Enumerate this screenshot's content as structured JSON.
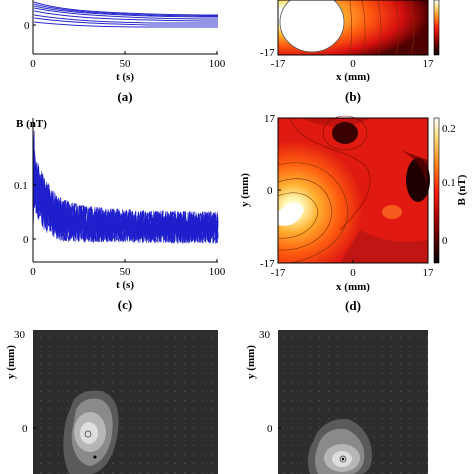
{
  "panel_a": {
    "label": "(a)",
    "xlabel": "t (s)",
    "x_ticks": [
      "0",
      "50",
      "100"
    ],
    "y_ticks": [
      "0"
    ]
  },
  "panel_b": {
    "label": "(b)",
    "xlabel": "x (mm)",
    "x_ticks": [
      "-17",
      "0",
      "17"
    ],
    "y_ticks": [
      "-17"
    ]
  },
  "panel_c": {
    "label": "(c)",
    "xlabel": "t (s)",
    "ylabel": "B (nT)",
    "x_ticks": [
      "0",
      "50",
      "100"
    ],
    "y_ticks": [
      "0.1",
      "0"
    ]
  },
  "panel_d": {
    "label": "(d)",
    "xlabel": "x (mm)",
    "ylabel": "y (mm)",
    "colorbar_label": "B (nT)",
    "x_ticks": [
      "-17",
      "0",
      "17"
    ],
    "y_ticks": [
      "17",
      "0",
      "-17"
    ],
    "colorbar_ticks": [
      "0.2",
      "0.1",
      "0"
    ]
  },
  "panel_e": {
    "ylabel": "y (mm)",
    "y_ticks": [
      "30",
      "0"
    ]
  },
  "panel_f": {
    "ylabel": "y (mm)",
    "y_ticks": [
      "30",
      "0"
    ]
  },
  "colors": {
    "trace": "#1f1fcc",
    "heat_low": "#000000",
    "heat_mid": "#e01010",
    "heat_high": "#ffffff"
  },
  "chart_data": [
    {
      "type": "line",
      "title": "",
      "xlabel": "t (s)",
      "ylabel": "",
      "xlim": [
        0,
        100
      ],
      "description_series": "multiple decaying traces",
      "series": [
        {
          "x": [
            0,
            10,
            25,
            50,
            75,
            100
          ],
          "y": [
            0.3,
            0.16,
            0.11,
            0.08,
            0.07,
            0.065
          ]
        },
        {
          "x": [
            0,
            10,
            25,
            50,
            75,
            100
          ],
          "y": [
            0.26,
            0.14,
            0.1,
            0.075,
            0.065,
            0.06
          ]
        },
        {
          "x": [
            0,
            10,
            25,
            50,
            75,
            100
          ],
          "y": [
            0.22,
            0.12,
            0.085,
            0.065,
            0.055,
            0.05
          ]
        },
        {
          "x": [
            0,
            10,
            25,
            50,
            75,
            100
          ],
          "y": [
            0.18,
            0.1,
            0.07,
            0.05,
            0.04,
            0.035
          ]
        },
        {
          "x": [
            0,
            10,
            25,
            50,
            75,
            100
          ],
          "y": [
            0.14,
            0.07,
            0.05,
            0.035,
            0.028,
            0.025
          ]
        },
        {
          "x": [
            0,
            10,
            25,
            50,
            75,
            100
          ],
          "y": [
            0.1,
            0.05,
            0.035,
            0.025,
            0.02,
            0.018
          ]
        }
      ]
    },
    {
      "type": "line",
      "title": "",
      "xlabel": "t (s)",
      "ylabel": "B (nT)",
      "xlim": [
        0,
        100
      ],
      "ylim": [
        -0.03,
        0.22
      ],
      "series": [
        {
          "x": [
            0,
            1,
            2,
            5,
            10,
            20,
            40,
            60,
            80,
            100
          ],
          "y": [
            0.0,
            0.2,
            0.12,
            0.08,
            0.06,
            0.04,
            0.03,
            0.025,
            0.02,
            0.02
          ]
        }
      ]
    }
  ]
}
